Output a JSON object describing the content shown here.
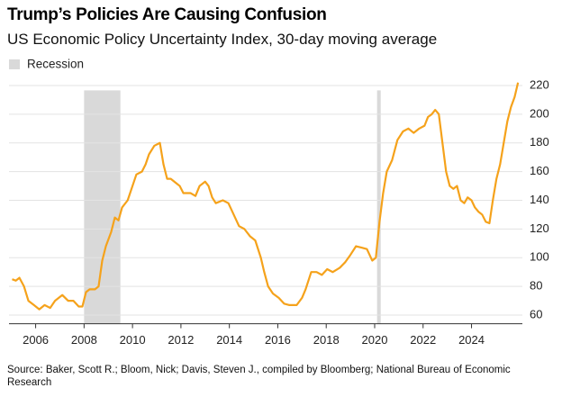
{
  "chart_data": {
    "type": "line",
    "title": "Trump’s Policies Are Causing Confusion",
    "subtitle": "US Economic Policy Uncertainty Index, 30-day moving average",
    "source": "Source: Baker, Scott R.; Bloom, Nick; Davis, Steven J., compiled by Bloomberg; National Bureau of Economic Research",
    "shading_label": "Recession",
    "shading_color": "#d9d9d9",
    "recessions": [
      [
        2008.0,
        2009.5
      ],
      [
        2020.1,
        2020.25
      ]
    ],
    "xlim": [
      2004.9,
      2026.1
    ],
    "xticks": [
      2006,
      2008,
      2010,
      2012,
      2014,
      2016,
      2018,
      2020,
      2022,
      2024
    ],
    "ylim": [
      54,
      226
    ],
    "yticks": [
      60,
      80,
      100,
      120,
      140,
      160,
      180,
      200,
      220
    ],
    "grid": true,
    "series": [
      {
        "name": "US Economic Policy Uncertainty Index",
        "color": "#f5a21b",
        "x": [
          2005.03,
          2005.18,
          2005.33,
          2005.52,
          2005.7,
          2005.93,
          2006.15,
          2006.37,
          2006.6,
          2006.8,
          2007.1,
          2007.34,
          2007.56,
          2007.78,
          2007.93,
          2008.08,
          2008.23,
          2008.45,
          2008.6,
          2008.75,
          2008.9,
          2009.12,
          2009.27,
          2009.42,
          2009.57,
          2009.8,
          2010.0,
          2010.16,
          2010.39,
          2010.54,
          2010.68,
          2010.9,
          2011.13,
          2011.28,
          2011.43,
          2011.58,
          2011.8,
          2011.95,
          2012.1,
          2012.4,
          2012.6,
          2012.77,
          2013.0,
          2013.14,
          2013.29,
          2013.44,
          2013.73,
          2013.96,
          2014.18,
          2014.4,
          2014.62,
          2014.85,
          2015.07,
          2015.3,
          2015.44,
          2015.6,
          2015.8,
          2016.04,
          2016.26,
          2016.48,
          2016.78,
          2017.0,
          2017.15,
          2017.38,
          2017.6,
          2017.82,
          2018.04,
          2018.27,
          2018.56,
          2018.79,
          2019.0,
          2019.23,
          2019.46,
          2019.68,
          2019.9,
          2020.05,
          2020.2,
          2020.35,
          2020.5,
          2020.72,
          2020.94,
          2021.17,
          2021.39,
          2021.61,
          2021.84,
          2022.06,
          2022.2,
          2022.36,
          2022.5,
          2022.65,
          2022.8,
          2022.95,
          2023.1,
          2023.25,
          2023.4,
          2023.55,
          2023.7,
          2023.84,
          2024.0,
          2024.14,
          2024.29,
          2024.44,
          2024.59,
          2024.74,
          2024.88,
          2025.03,
          2025.18,
          2025.33,
          2025.48,
          2025.63,
          2025.78,
          2025.92
        ],
        "values": [
          85,
          84,
          86,
          80,
          70,
          67,
          64,
          67,
          65,
          70,
          74,
          70,
          70,
          66,
          66,
          76,
          78,
          78,
          80,
          98,
          108,
          118,
          128,
          126,
          135,
          140,
          150,
          158,
          160,
          165,
          172,
          178,
          180,
          165,
          155,
          155,
          152,
          150,
          145,
          145,
          143,
          150,
          153,
          150,
          142,
          138,
          140,
          138,
          130,
          122,
          120,
          115,
          112,
          100,
          90,
          80,
          75,
          72,
          68,
          67,
          67,
          72,
          78,
          90,
          90,
          88,
          92,
          90,
          93,
          97,
          102,
          108,
          107,
          106,
          98,
          100,
          125,
          145,
          160,
          168,
          182,
          188,
          190,
          187,
          190,
          192,
          198,
          200,
          203,
          200,
          180,
          160,
          150,
          148,
          150,
          140,
          138,
          142,
          140,
          135,
          132,
          130,
          125,
          124,
          140,
          155,
          165,
          180,
          195,
          205,
          212,
          222
        ]
      }
    ]
  }
}
